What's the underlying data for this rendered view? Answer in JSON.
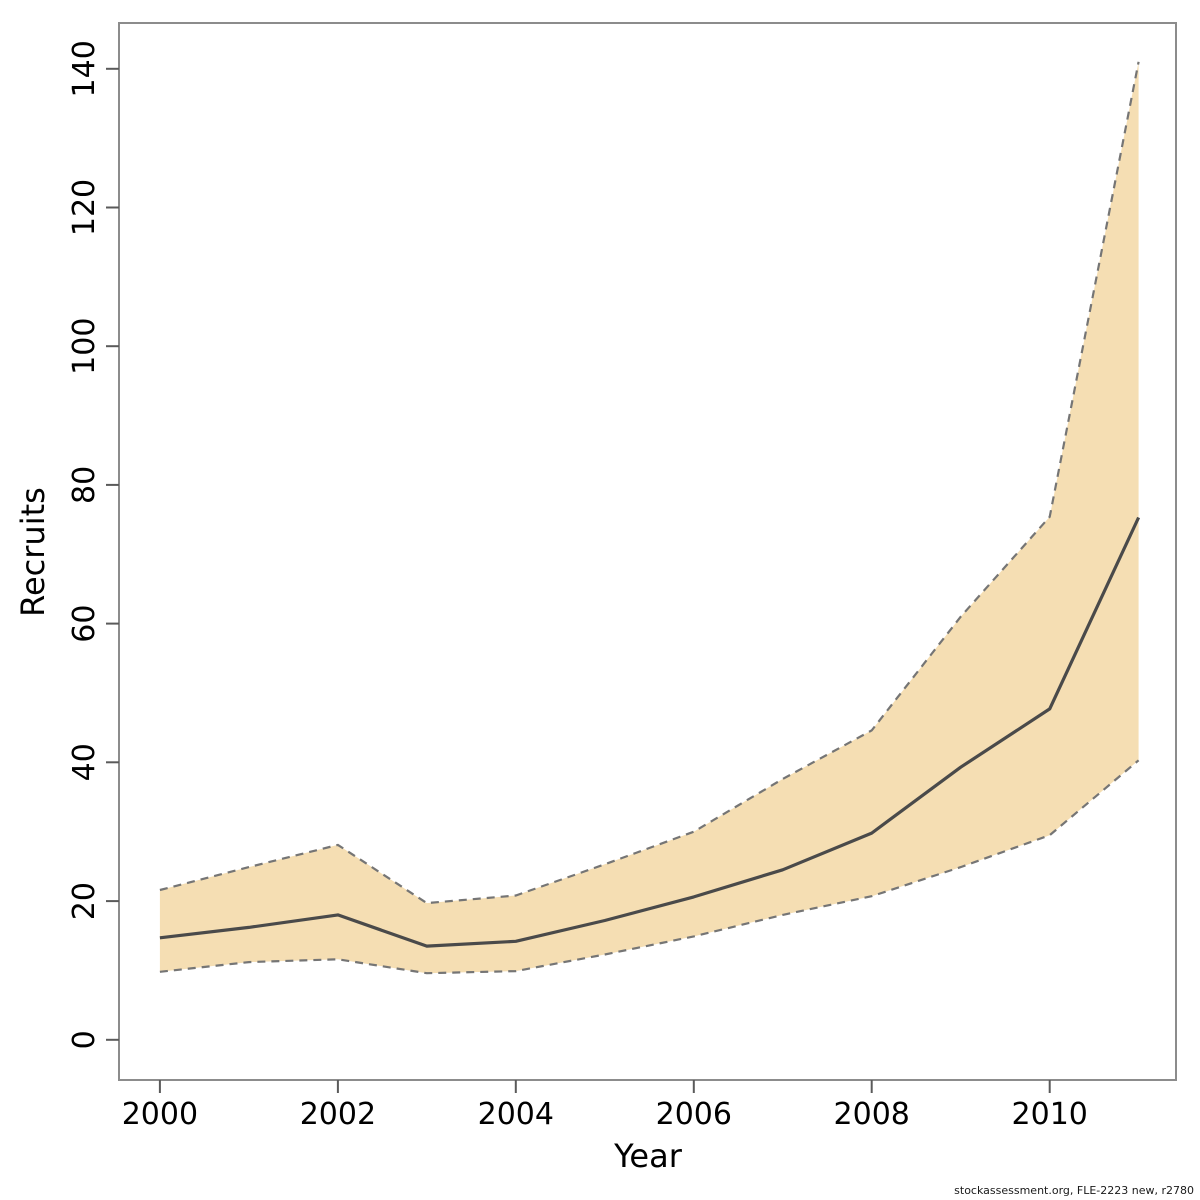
{
  "footer": {
    "text": "stockassessment.org, FLE-2223 new, r2780"
  },
  "chart_data": {
    "type": "line",
    "subtype": "line-with-confidence-band",
    "title": "",
    "xlabel": "Year",
    "ylabel": "Recruits",
    "x": [
      2000,
      2001,
      2002,
      2003,
      2004,
      2005,
      2006,
      2007,
      2008,
      2009,
      2010,
      2011
    ],
    "series": [
      {
        "name": "estimate",
        "style": "solid",
        "values": [
          14.7,
          16.2,
          18.0,
          13.5,
          14.2,
          17.2,
          20.6,
          24.5,
          29.8,
          39.3,
          47.7,
          75.3
        ]
      },
      {
        "name": "ci_lower_95",
        "style": "dashed",
        "values": [
          9.8,
          11.2,
          11.6,
          9.6,
          9.9,
          12.3,
          14.9,
          18.0,
          20.7,
          24.9,
          29.5,
          40.3
        ]
      },
      {
        "name": "ci_upper_95",
        "style": "dashed",
        "values": [
          21.6,
          24.9,
          28.1,
          19.7,
          20.8,
          25.3,
          30.0,
          37.6,
          44.6,
          61.0,
          75.4,
          141.0
        ]
      }
    ],
    "x_ticks": [
      2000,
      2002,
      2004,
      2006,
      2008,
      2010
    ],
    "y_ticks": [
      0,
      20,
      40,
      60,
      80,
      100,
      120,
      140
    ],
    "xlim": [
      1999.54,
      2011.42
    ],
    "ylim": [
      -5.8,
      146.6
    ],
    "grid": false,
    "legend_position": "none",
    "colors": {
      "band_fill": "#F5DEB3",
      "band_border": "#757575",
      "line": "#4A4A4A",
      "box": "#8C8C8C",
      "tick": "#5A5A5A",
      "text": "#000000",
      "background": "#FFFFFF"
    }
  }
}
